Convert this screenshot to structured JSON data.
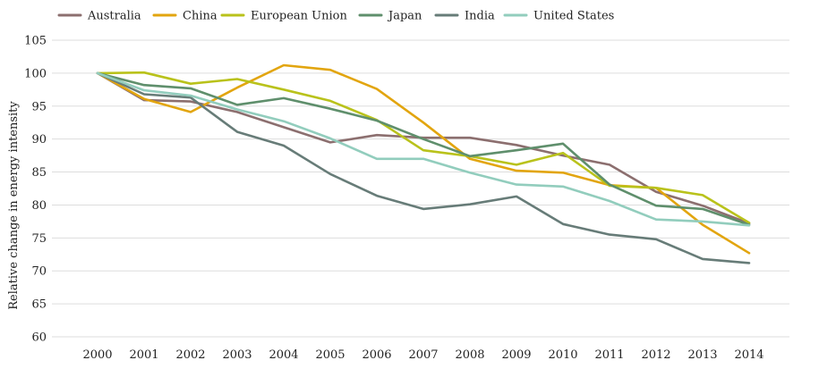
{
  "chart_data": {
    "type": "line",
    "title": "",
    "xlabel": "",
    "ylabel": "Relative change in energy intensity",
    "ylim": [
      60,
      105
    ],
    "yticks": [
      60,
      65,
      70,
      75,
      80,
      85,
      90,
      95,
      100,
      105
    ],
    "grid": "horizontal",
    "legend_position": "top",
    "categories": [
      "2000",
      "2001",
      "2002",
      "2003",
      "2004",
      "2005",
      "2006",
      "2007",
      "2008",
      "2009",
      "2010",
      "2011",
      "2012",
      "2013",
      "2014"
    ],
    "series": [
      {
        "name": "Australia",
        "color": "#8c6f6f",
        "values": [
          100,
          95.9,
          95.7,
          94.1,
          91.8,
          89.5,
          90.6,
          90.2,
          90.2,
          89.1,
          87.5,
          86.1,
          82.0,
          79.9,
          77.2
        ]
      },
      {
        "name": "China",
        "color": "#e2a50f",
        "values": [
          100,
          96.1,
          94.1,
          97.8,
          101.2,
          100.5,
          97.6,
          92.5,
          87.0,
          85.2,
          84.9,
          83.0,
          82.6,
          77.0,
          72.7
        ]
      },
      {
        "name": "European Union",
        "color": "#b9c21b",
        "values": [
          100,
          100.1,
          98.4,
          99.1,
          97.5,
          95.8,
          92.9,
          88.3,
          87.4,
          86.1,
          87.9,
          82.9,
          82.6,
          81.5,
          77.3
        ]
      },
      {
        "name": "Japan",
        "color": "#5f8f6c",
        "values": [
          100,
          98.2,
          97.7,
          95.2,
          96.2,
          94.6,
          92.8,
          90.0,
          87.4,
          88.3,
          89.3,
          83.1,
          79.9,
          79.4,
          77.0
        ]
      },
      {
        "name": "India",
        "color": "#677c78",
        "values": [
          100,
          96.8,
          96.3,
          91.1,
          89.0,
          84.7,
          81.4,
          79.4,
          80.1,
          81.3,
          77.1,
          75.5,
          74.8,
          71.8,
          71.2
        ]
      },
      {
        "name": "United States",
        "color": "#92cdbd",
        "values": [
          100,
          97.4,
          96.6,
          94.5,
          92.7,
          90.1,
          87.0,
          87.0,
          84.9,
          83.1,
          82.8,
          80.6,
          77.8,
          77.5,
          76.9
        ]
      }
    ]
  }
}
